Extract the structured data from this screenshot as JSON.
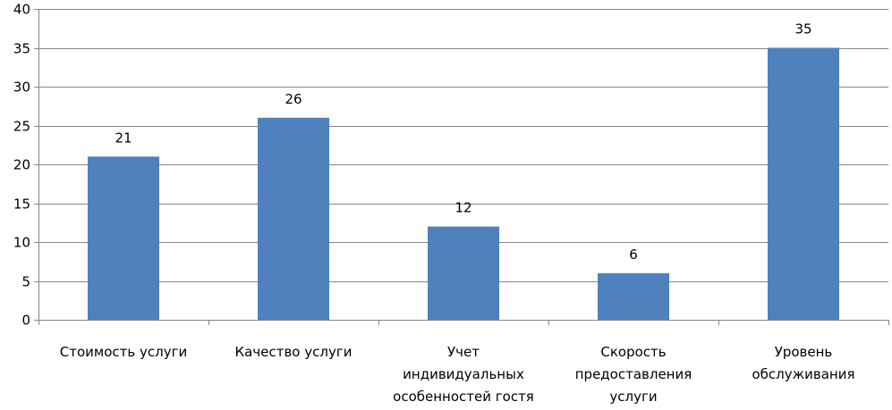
{
  "chart_data": {
    "type": "bar",
    "categories": [
      "Стоимость услуги",
      "Качество услуги",
      "Учет индивидуальных особенностей гостя",
      "Скорость предоставления услуги",
      "Уровень обслуживания"
    ],
    "category_lines": [
      [
        "Стоимость услуги"
      ],
      [
        "Качество услуги"
      ],
      [
        "Учет",
        "индивидуальных",
        "особенностей гостя"
      ],
      [
        "Скорость",
        "предоставления",
        "услуги"
      ],
      [
        "Уровень",
        "обслуживания"
      ]
    ],
    "values": [
      21,
      26,
      12,
      6,
      35
    ],
    "data_labels": [
      "21",
      "26",
      "12",
      "6",
      "35"
    ],
    "yticks": [
      0,
      5,
      10,
      15,
      20,
      25,
      30,
      35,
      40
    ],
    "ylim": [
      0,
      40
    ],
    "grid": true,
    "legend": "none",
    "bar_color": "#4F81BD",
    "grid_color": "#868686",
    "title": "",
    "xlabel": "",
    "ylabel": ""
  }
}
